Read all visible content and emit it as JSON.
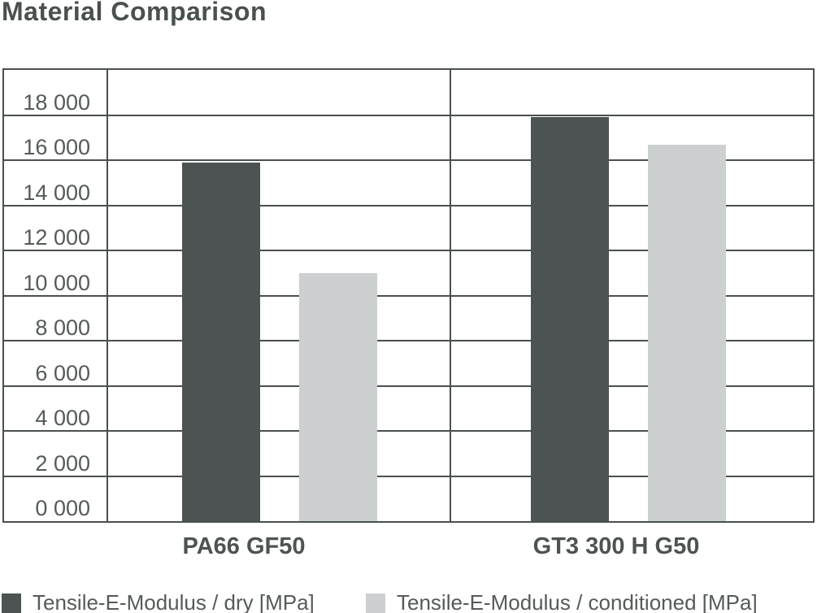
{
  "title": "Material Comparison",
  "colors": {
    "dark_series": "#4d5352",
    "light_series": "#cdd0d0",
    "grid": "#4a4f4f",
    "text": "#4d5352"
  },
  "chart_data": {
    "type": "bar",
    "title": "Material Comparison",
    "categories": [
      "PA66 GF50",
      "GT3 300 H G50"
    ],
    "series": [
      {
        "name": "Tensile-E-Modulus / dry [MPa]",
        "color": "#4d5352",
        "values": [
          15900,
          17900
        ]
      },
      {
        "name": "Tensile-E-Modulus / conditioned [MPa]",
        "color": "#cdd0d0",
        "values": [
          11000,
          16700
        ]
      }
    ],
    "ylabel": "",
    "xlabel": "",
    "ylim": [
      0,
      20000
    ],
    "ytick_interval": 2000,
    "ytick_labels": [
      "18 000",
      "16 000",
      "14 000",
      "12 000",
      "10 000",
      "8 000",
      "6 000",
      "4 000",
      "2 000",
      "0 000"
    ],
    "grid": true,
    "grid_style": "full-width horizontal lines every 2000, table-like frame with label column divider and category divider",
    "legend_position": "bottom"
  },
  "legend": {
    "items": [
      {
        "label": "Tensile-E-Modulus / dry [MPa]",
        "swatch_color": "#4d5352"
      },
      {
        "label": "Tensile-E-Modulus / conditioned [MPa]",
        "swatch_color": "#cdd0d0"
      }
    ]
  }
}
